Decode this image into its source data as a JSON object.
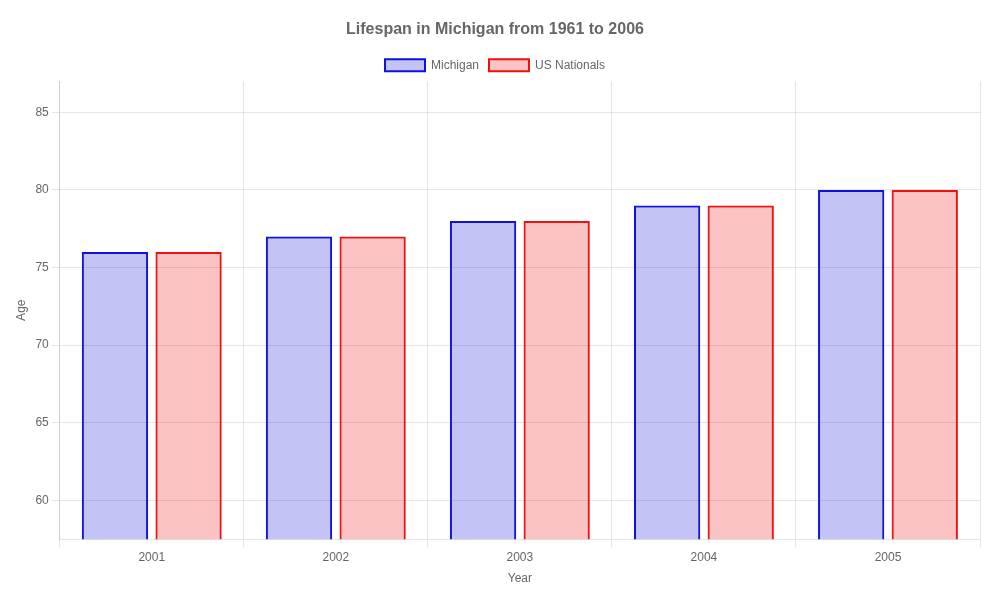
{
  "chart_data": {
    "type": "bar",
    "title": "Lifespan in Michigan from 1961 to 2006",
    "x_label": "Year",
    "y_label": "Age",
    "categories": [
      "2001",
      "2002",
      "2003",
      "2004",
      "2005"
    ],
    "series": [
      {
        "name": "Michigan",
        "color": "#1111dd",
        "values": [
          76,
          77,
          78,
          79,
          80
        ]
      },
      {
        "name": "US Nationals",
        "color": "#ee1111",
        "values": [
          76,
          77,
          78,
          79,
          80
        ]
      }
    ],
    "ylim": [
      57.5,
      87
    ],
    "yticks": [
      60,
      65,
      70,
      75,
      80,
      85
    ],
    "grid": true,
    "legend": "top"
  }
}
